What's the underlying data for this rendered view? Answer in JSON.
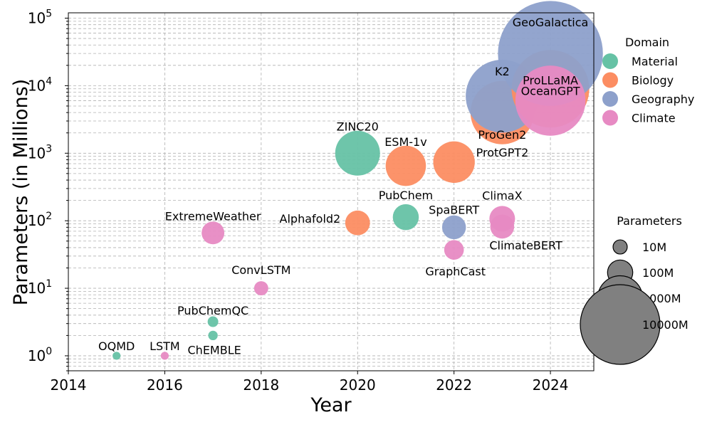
{
  "chart_data": {
    "type": "scatter",
    "title": "",
    "xlabel": "Year",
    "ylabel": "Parameters (in Millions)",
    "xlim": [
      2014,
      2024.9
    ],
    "ylim": [
      0.6,
      120000
    ],
    "y_scale": "log",
    "grid": true,
    "x_ticks": [
      "2014",
      "2016",
      "2018",
      "2020",
      "2022",
      "2024"
    ],
    "y_ticks": [
      {
        "value": 1,
        "base": "10",
        "exp": "0"
      },
      {
        "value": 10,
        "base": "10",
        "exp": "1"
      },
      {
        "value": 100,
        "base": "10",
        "exp": "2"
      },
      {
        "value": 1000,
        "base": "10",
        "exp": "3"
      },
      {
        "value": 10000,
        "base": "10",
        "exp": "4"
      },
      {
        "value": 100000,
        "base": "10",
        "exp": "5"
      }
    ],
    "colors": {
      "Material": "#66c2a5",
      "Biology": "#fc8d62",
      "Geography": "#8da0cb",
      "Climate": "#e78ac3",
      "size_legend": "#808080"
    },
    "legend_domain": {
      "title": "Domain",
      "placement": "right",
      "entries": [
        "Material",
        "Biology",
        "Geography",
        "Climate"
      ]
    },
    "legend_size": {
      "title": "Parameters",
      "placement": "right",
      "entries": [
        {
          "label": "10M",
          "value": 10
        },
        {
          "label": "100M",
          "value": 100
        },
        {
          "label": "1000M",
          "value": 1000
        },
        {
          "label": "10000M",
          "value": 10000
        }
      ]
    },
    "points": [
      {
        "name": "OQMD",
        "domain": "Material",
        "x": 2015,
        "y": 1
      },
      {
        "name": "LSTM",
        "domain": "Climate",
        "x": 2016,
        "y": 1
      },
      {
        "name": "PubChemQC",
        "domain": "Material",
        "x": 2017,
        "y": 3.2
      },
      {
        "name": "ChEMBLE",
        "domain": "Material",
        "x": 2017,
        "y": 2
      },
      {
        "name": "ExtremeWeather",
        "domain": "Climate",
        "x": 2017,
        "y": 66
      },
      {
        "name": "ConvLSTM",
        "domain": "Climate",
        "x": 2018,
        "y": 10
      },
      {
        "name": "ZINC20",
        "domain": "Material",
        "x": 2020,
        "y": 1000
      },
      {
        "name": "Alphafold2",
        "domain": "Biology",
        "x": 2020,
        "y": 93
      },
      {
        "name": "ESM-1v",
        "domain": "Biology",
        "x": 2021,
        "y": 650
      },
      {
        "name": "PubChem",
        "domain": "Material",
        "x": 2021,
        "y": 113
      },
      {
        "name": "ProtGPT2",
        "domain": "Biology",
        "x": 2022,
        "y": 738
      },
      {
        "name": "SpaBERT",
        "domain": "Geography",
        "x": 2022,
        "y": 80
      },
      {
        "name": "GraphCast",
        "domain": "Climate",
        "x": 2022,
        "y": 37
      },
      {
        "name": "ClimaX",
        "domain": "Climate",
        "x": 2023,
        "y": 107
      },
      {
        "name": "ClimateBERT",
        "domain": "Climate",
        "x": 2023,
        "y": 82
      },
      {
        "name": "ProGen2",
        "domain": "Biology",
        "x": 2023,
        "y": 4000
      },
      {
        "name": "K2",
        "domain": "Geography",
        "x": 2023,
        "y": 7000
      },
      {
        "name": "ProLLaMA",
        "domain": "Biology",
        "x": 2024,
        "y": 9000
      },
      {
        "name": "GeoGalactica",
        "domain": "Geography",
        "x": 2024,
        "y": 30000
      },
      {
        "name": "OceanGPT",
        "domain": "Climate",
        "x": 2024,
        "y": 6000
      }
    ]
  }
}
